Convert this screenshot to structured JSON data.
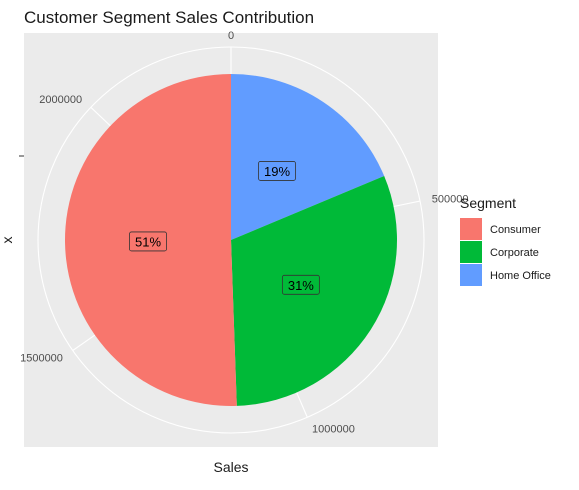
{
  "chart_data": {
    "type": "pie",
    "title": "Customer Segment Sales Contribution",
    "xlabel": "Sales",
    "ylabel": "x",
    "total": 2297201,
    "categories": [
      "Consumer",
      "Corporate",
      "Home Office"
    ],
    "values": [
      1161401,
      706146,
      429654
    ],
    "percent_labels": [
      "51%",
      "31%",
      "19%"
    ],
    "colors": [
      "#F8766D",
      "#00BA38",
      "#619CFF"
    ],
    "theta_ticks": [
      0,
      500000,
      1000000,
      1500000,
      2000000
    ],
    "theta_tick_labels": [
      "0",
      "500000",
      "1000000",
      "1500000",
      "2000000"
    ],
    "legend": {
      "title": "Segment",
      "position": "right"
    },
    "panel_background": "#EBEBEB",
    "grid_color": "#FFFFFF"
  }
}
